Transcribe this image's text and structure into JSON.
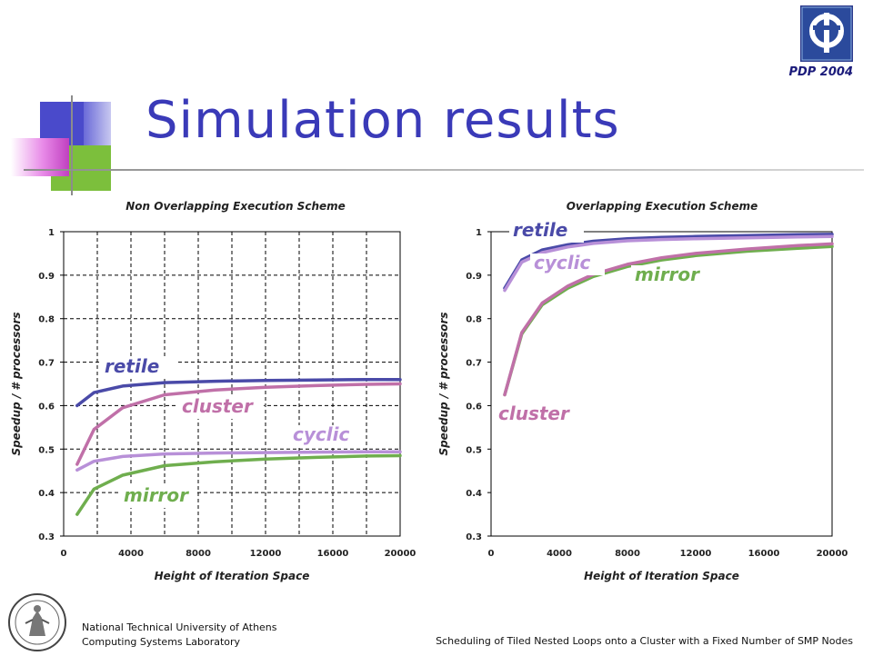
{
  "slide": {
    "title": "Simulation results",
    "conference": "PDP 2004",
    "footer_institution": "National Technical University of Athens",
    "footer_lab": "Computing Systems Laboratory",
    "footer_topic": "Scheduling of Tiled Nested Loops onto a Cluster with a Fixed Number of SMP Nodes",
    "accent_color": "#3a3ab8"
  },
  "chart_data": [
    {
      "type": "line",
      "title": "Non Overlapping Execution Scheme",
      "xlabel": "Height of Iteration Space",
      "ylabel": "Speedup / # processors",
      "xlim": [
        0,
        20000
      ],
      "ylim": [
        0.3,
        1
      ],
      "xticks": [
        0,
        4000,
        8000,
        12000,
        16000,
        20000
      ],
      "yticks": [
        0.3,
        0.4,
        0.5,
        0.6,
        0.7,
        0.8,
        0.9,
        1
      ],
      "ytick_labels": [
        "0.3",
        "0.4",
        "0.5",
        "0.6",
        "0.7",
        "0.8",
        "0.9",
        "1"
      ],
      "grid": true,
      "x": [
        800,
        1800,
        3500,
        6000,
        9000,
        12000,
        15000,
        18000,
        20000
      ],
      "series": [
        {
          "name": "retile",
          "color": "#4a4aa8",
          "values": [
            0.6,
            0.63,
            0.645,
            0.653,
            0.656,
            0.658,
            0.659,
            0.66,
            0.66
          ]
        },
        {
          "name": "cluster",
          "color": "#c070a8",
          "values": [
            0.465,
            0.545,
            0.595,
            0.625,
            0.636,
            0.642,
            0.646,
            0.649,
            0.65
          ]
        },
        {
          "name": "cyclic",
          "color": "#b890d8",
          "values": [
            0.452,
            0.472,
            0.483,
            0.489,
            0.491,
            0.492,
            0.493,
            0.494,
            0.494
          ]
        },
        {
          "name": "mirror",
          "color": "#6fae4e",
          "values": [
            0.35,
            0.408,
            0.44,
            0.462,
            0.471,
            0.477,
            0.481,
            0.484,
            0.485
          ]
        }
      ]
    },
    {
      "type": "line",
      "title": "Overlapping Execution Scheme",
      "xlabel": "Height of Iteration Space",
      "ylabel": "Speedup / # processors",
      "xlim": [
        0,
        20000
      ],
      "ylim": [
        0.3,
        1
      ],
      "xticks": [
        0,
        4000,
        8000,
        12000,
        16000,
        20000
      ],
      "yticks": [
        0.3,
        0.4,
        0.5,
        0.6,
        0.7,
        0.8,
        0.9,
        1
      ],
      "ytick_labels": [
        "0.3",
        "0.4",
        "0.5",
        "0.6",
        "0.7",
        "0.8",
        "0.9",
        "1"
      ],
      "grid": false,
      "x": [
        800,
        1800,
        3000,
        4500,
        6000,
        8000,
        10000,
        12000,
        15000,
        18000,
        20000
      ],
      "series": [
        {
          "name": "retile",
          "color": "#4a4aa8",
          "values": [
            0.87,
            0.935,
            0.958,
            0.97,
            0.978,
            0.984,
            0.987,
            0.989,
            0.991,
            0.993,
            0.994
          ]
        },
        {
          "name": "cyclic",
          "color": "#b890d8",
          "values": [
            0.865,
            0.93,
            0.952,
            0.965,
            0.973,
            0.979,
            0.982,
            0.984,
            0.986,
            0.988,
            0.989
          ]
        },
        {
          "name": "mirror",
          "color": "#6fae4e",
          "values": [
            0.625,
            0.765,
            0.832,
            0.87,
            0.897,
            0.92,
            0.935,
            0.945,
            0.955,
            0.962,
            0.966
          ]
        },
        {
          "name": "cluster",
          "color": "#c070a8",
          "values": [
            0.625,
            0.768,
            0.836,
            0.875,
            0.902,
            0.925,
            0.94,
            0.95,
            0.96,
            0.968,
            0.972
          ]
        }
      ]
    }
  ]
}
